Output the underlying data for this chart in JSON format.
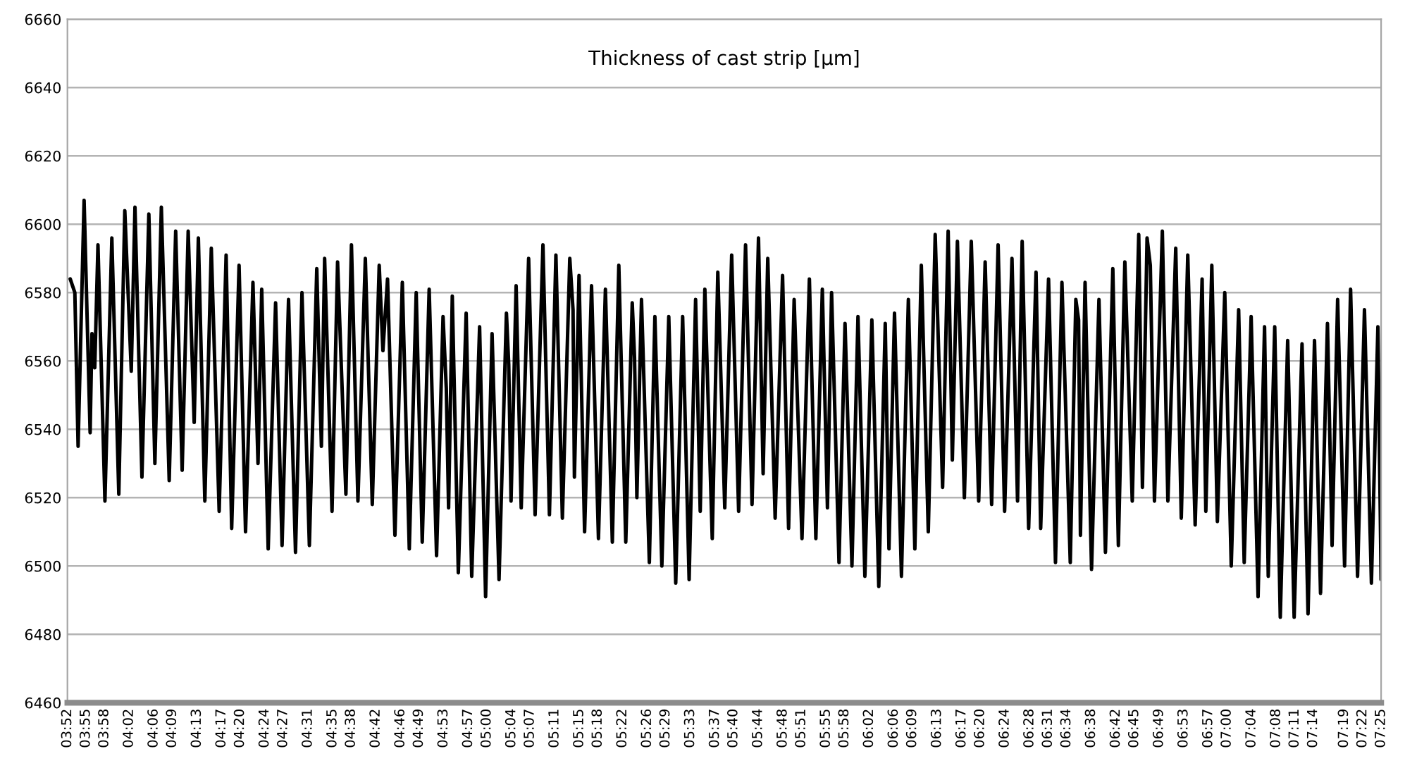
{
  "chart_data": {
    "type": "line",
    "title": "Thickness of cast strip [µm]",
    "x": [
      3.8742,
      3.8867,
      3.8955,
      3.9117,
      3.928,
      3.933,
      3.9405,
      3.9492,
      3.968,
      3.9867,
      4.0055,
      4.0217,
      4.0392,
      4.0492,
      4.068,
      4.0867,
      4.103,
      4.1205,
      4.1417,
      4.1592,
      4.1767,
      4.193,
      4.2092,
      4.2205,
      4.238,
      4.2555,
      4.2767,
      4.2955,
      4.3105,
      4.3305,
      4.348,
      4.368,
      4.3817,
      4.3917,
      4.4092,
      4.4292,
      4.4467,
      4.4642,
      4.483,
      4.5005,
      4.5205,
      4.5405,
      4.553,
      4.5617,
      4.5817,
      4.5967,
      4.6192,
      4.6342,
      4.6517,
      4.6717,
      4.6905,
      4.7092,
      4.7192,
      4.7317,
      4.7517,
      4.7717,
      4.7905,
      4.8092,
      4.8255,
      4.8442,
      4.8642,
      4.8817,
      4.8905,
      4.8967,
      4.9067,
      4.923,
      4.9442,
      4.9592,
      4.9805,
      4.9967,
      5.0142,
      5.033,
      5.053,
      5.0592,
      5.0655,
      5.0792,
      5.093,
      5.113,
      5.1305,
      5.1517,
      5.1692,
      5.1867,
      5.2042,
      5.2242,
      5.233,
      5.2367,
      5.2492,
      5.2642,
      5.283,
      5.3017,
      5.3205,
      5.3392,
      5.3567,
      5.3755,
      5.393,
      5.3992,
      5.4055,
      5.418,
      5.4392,
      5.4542,
      5.473,
      5.4917,
      5.5105,
      5.5292,
      5.5467,
      5.5642,
      5.5767,
      5.5892,
      5.6092,
      5.6242,
      5.643,
      5.6617,
      5.6805,
      5.6992,
      5.7167,
      5.7342,
      5.7467,
      5.7592,
      5.7792,
      5.7992,
      5.8155,
      5.8305,
      5.8517,
      5.8717,
      5.8892,
      5.9067,
      5.9205,
      5.9317,
      5.9517,
      5.968,
      5.9867,
      6.003,
      6.0217,
      6.0405,
      6.0592,
      6.0767,
      6.0867,
      6.1017,
      6.1205,
      6.1392,
      6.1567,
      6.1742,
      6.193,
      6.2117,
      6.2317,
      6.2467,
      6.258,
      6.2717,
      6.2905,
      6.3092,
      6.3292,
      6.3467,
      6.3642,
      6.3817,
      6.3992,
      6.4192,
      6.4342,
      6.4467,
      6.4642,
      6.4842,
      6.4967,
      6.518,
      6.5367,
      6.5542,
      6.5767,
      6.5917,
      6.5992,
      6.6042,
      6.6167,
      6.6342,
      6.6542,
      6.6717,
      6.6917,
      6.7067,
      6.7242,
      6.7442,
      6.7617,
      6.7717,
      6.7842,
      6.793,
      6.8042,
      6.8255,
      6.8405,
      6.8617,
      6.8767,
      6.8942,
      6.9142,
      6.933,
      6.943,
      6.9592,
      6.9742,
      6.9942,
      7.0117,
      7.0317,
      7.0467,
      7.0655,
      7.0842,
      7.1017,
      7.1117,
      7.1292,
      7.1442,
      7.1642,
      7.1817,
      7.203,
      7.2192,
      7.2367,
      7.253,
      7.2717,
      7.2842,
      7.2992,
      7.318,
      7.3342,
      7.353,
      7.3717,
      7.3905,
      7.408,
      7.4167
    ],
    "series": [
      {
        "color": "#000000",
        "values": [
          6584,
          6580,
          6535,
          6607,
          6539,
          6568,
          6558,
          6594,
          6519,
          6596,
          6521,
          6604,
          6557,
          6605,
          6526,
          6603,
          6530,
          6605,
          6525,
          6598,
          6528,
          6598,
          6542,
          6596,
          6519,
          6593,
          6516,
          6591,
          6511,
          6588,
          6510,
          6583,
          6530,
          6581,
          6505,
          6577,
          6506,
          6578,
          6504,
          6580,
          6506,
          6587,
          6535,
          6590,
          6516,
          6589,
          6521,
          6594,
          6519,
          6590,
          6518,
          6588,
          6563,
          6584,
          6509,
          6583,
          6505,
          6580,
          6507,
          6581,
          6503,
          6573,
          6552,
          6517,
          6579,
          6498,
          6574,
          6497,
          6570,
          6491,
          6568,
          6496,
          6574,
          6559,
          6519,
          6582,
          6517,
          6590,
          6515,
          6594,
          6515,
          6591,
          6514,
          6590,
          6575,
          6526,
          6585,
          6510,
          6582,
          6508,
          6581,
          6507,
          6588,
          6507,
          6577,
          6561,
          6520,
          6578,
          6501,
          6573,
          6500,
          6573,
          6495,
          6573,
          6496,
          6578,
          6516,
          6581,
          6508,
          6586,
          6517,
          6591,
          6516,
          6594,
          6518,
          6596,
          6527,
          6590,
          6514,
          6585,
          6511,
          6578,
          6508,
          6584,
          6508,
          6581,
          6517,
          6580,
          6501,
          6571,
          6500,
          6573,
          6497,
          6572,
          6494,
          6571,
          6505,
          6574,
          6497,
          6578,
          6505,
          6588,
          6510,
          6597,
          6523,
          6598,
          6531,
          6595,
          6520,
          6595,
          6519,
          6589,
          6518,
          6594,
          6516,
          6590,
          6519,
          6595,
          6511,
          6586,
          6511,
          6584,
          6501,
          6583,
          6501,
          6578,
          6572,
          6509,
          6583,
          6499,
          6578,
          6504,
          6587,
          6506,
          6589,
          6519,
          6597,
          6523,
          6596,
          6588,
          6519,
          6598,
          6519,
          6593,
          6514,
          6591,
          6512,
          6584,
          6516,
          6588,
          6513,
          6580,
          6500,
          6575,
          6501,
          6573,
          6491,
          6570,
          6497,
          6570,
          6485,
          6566,
          6485,
          6565,
          6486,
          6566,
          6492,
          6571,
          6506,
          6578,
          6500,
          6581,
          6497,
          6575,
          6495,
          6570,
          6496
        ]
      }
    ],
    "xlim": [
      3.8667,
      7.4167
    ],
    "xticks": [
      {
        "value": 3.8667,
        "label": "03:52"
      },
      {
        "value": 3.9167,
        "label": "03:55"
      },
      {
        "value": 3.9667,
        "label": "03:58"
      },
      {
        "value": 4.0333,
        "label": "04:02"
      },
      {
        "value": 4.1,
        "label": "04:06"
      },
      {
        "value": 4.15,
        "label": "04:09"
      },
      {
        "value": 4.2167,
        "label": "04:13"
      },
      {
        "value": 4.2833,
        "label": "04:17"
      },
      {
        "value": 4.3333,
        "label": "04:20"
      },
      {
        "value": 4.4,
        "label": "04:24"
      },
      {
        "value": 4.45,
        "label": "04:27"
      },
      {
        "value": 4.5167,
        "label": "04:31"
      },
      {
        "value": 4.5833,
        "label": "04:35"
      },
      {
        "value": 4.6333,
        "label": "04:38"
      },
      {
        "value": 4.7,
        "label": "04:42"
      },
      {
        "value": 4.7667,
        "label": "04:46"
      },
      {
        "value": 4.8167,
        "label": "04:49"
      },
      {
        "value": 4.8833,
        "label": "04:53"
      },
      {
        "value": 4.95,
        "label": "04:57"
      },
      {
        "value": 5,
        "label": "05:00"
      },
      {
        "value": 5.0667,
        "label": "05:04"
      },
      {
        "value": 5.1167,
        "label": "05:07"
      },
      {
        "value": 5.1833,
        "label": "05:11"
      },
      {
        "value": 5.25,
        "label": "05:15"
      },
      {
        "value": 5.3,
        "label": "05:18"
      },
      {
        "value": 5.3667,
        "label": "05:22"
      },
      {
        "value": 5.4333,
        "label": "05:26"
      },
      {
        "value": 5.4833,
        "label": "05:29"
      },
      {
        "value": 5.55,
        "label": "05:33"
      },
      {
        "value": 5.6167,
        "label": "05:37"
      },
      {
        "value": 5.6667,
        "label": "05:40"
      },
      {
        "value": 5.7333,
        "label": "05:44"
      },
      {
        "value": 5.8,
        "label": "05:48"
      },
      {
        "value": 5.85,
        "label": "05:51"
      },
      {
        "value": 5.9167,
        "label": "05:55"
      },
      {
        "value": 5.9667,
        "label": "05:58"
      },
      {
        "value": 6.0333,
        "label": "06:02"
      },
      {
        "value": 6.1,
        "label": "06:06"
      },
      {
        "value": 6.15,
        "label": "06:09"
      },
      {
        "value": 6.2167,
        "label": "06:13"
      },
      {
        "value": 6.2833,
        "label": "06:17"
      },
      {
        "value": 6.3333,
        "label": "06:20"
      },
      {
        "value": 6.4,
        "label": "06:24"
      },
      {
        "value": 6.4667,
        "label": "06:28"
      },
      {
        "value": 6.5167,
        "label": "06:31"
      },
      {
        "value": 6.5667,
        "label": "06:34"
      },
      {
        "value": 6.6333,
        "label": "06:38"
      },
      {
        "value": 6.7,
        "label": "06:42"
      },
      {
        "value": 6.75,
        "label": "06:45"
      },
      {
        "value": 6.8167,
        "label": "06:49"
      },
      {
        "value": 6.8833,
        "label": "06:53"
      },
      {
        "value": 6.95,
        "label": "06:57"
      },
      {
        "value": 7,
        "label": "07:00"
      },
      {
        "value": 7.0667,
        "label": "07:04"
      },
      {
        "value": 7.1333,
        "label": "07:08"
      },
      {
        "value": 7.1833,
        "label": "07:11"
      },
      {
        "value": 7.2333,
        "label": "07:14"
      },
      {
        "value": 7.3167,
        "label": "07:19"
      },
      {
        "value": 7.3667,
        "label": "07:22"
      },
      {
        "value": 7.4167,
        "label": "07:25"
      }
    ],
    "ylim": [
      6460,
      6660
    ],
    "yticks": [
      6460,
      6480,
      6500,
      6520,
      6540,
      6560,
      6580,
      6600,
      6620,
      6640,
      6660
    ],
    "grid": "y",
    "line_style": "solid",
    "marker": "none"
  }
}
